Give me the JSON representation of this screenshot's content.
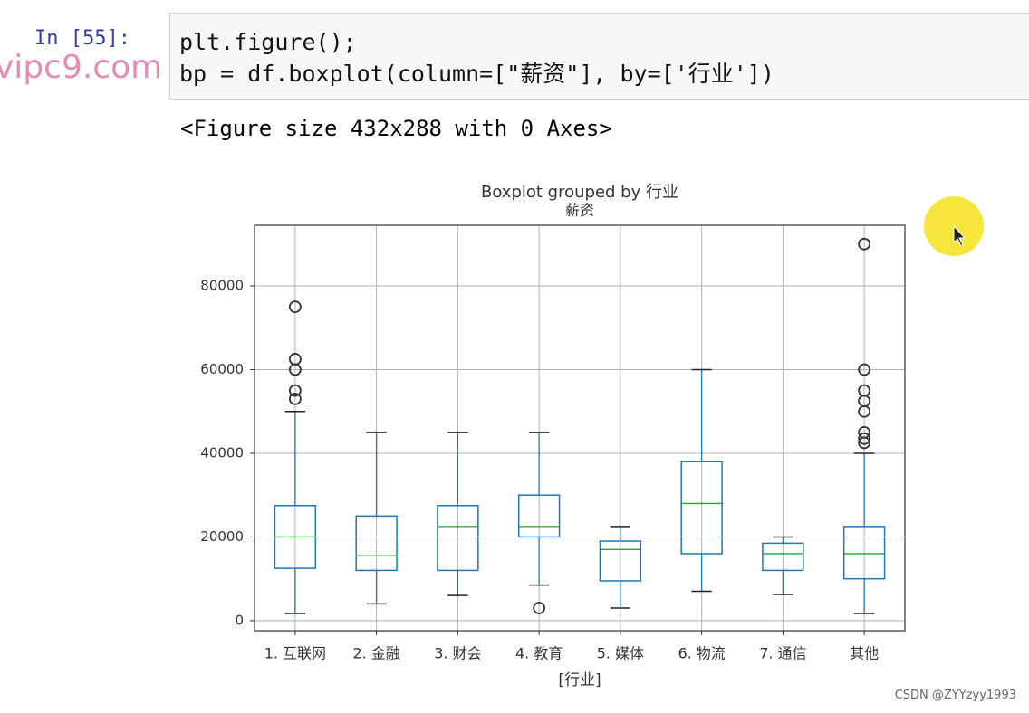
{
  "watermark": "vipc9.com",
  "cell": {
    "prompt": "In [55]:",
    "code": [
      "plt.figure();",
      "bp = df.boxplot(column=[\"薪资\"], by=['行业'])"
    ],
    "output": "<Figure size 432x288 with 0 Axes>"
  },
  "footer": "CSDN @ZYYzyy1993",
  "chart_data": {
    "type": "box",
    "title": "Boxplot grouped by 行业",
    "subtitle": "薪资",
    "xlabel": "[行业]",
    "categories": [
      "1. 互联网",
      "2. 金融",
      "3. 财会",
      "4. 教育",
      "5. 媒体",
      "6. 物流",
      "7. 通信",
      "其他"
    ],
    "boxes": [
      {
        "whislo": 1700,
        "q1": 12500,
        "med": 20000,
        "q3": 27500,
        "whishi": 50000,
        "fliers": [
          53000,
          55000,
          60000,
          62500,
          75000
        ]
      },
      {
        "whislo": 4000,
        "q1": 12000,
        "med": 15500,
        "q3": 25000,
        "whishi": 45000,
        "fliers": []
      },
      {
        "whislo": 6000,
        "q1": 12000,
        "med": 22500,
        "q3": 27500,
        "whishi": 45000,
        "fliers": []
      },
      {
        "whislo": 8500,
        "q1": 20000,
        "med": 22500,
        "q3": 30000,
        "whishi": 45000,
        "fliers": [
          3000
        ]
      },
      {
        "whislo": 3000,
        "q1": 9500,
        "med": 17000,
        "q3": 19000,
        "whishi": 22500,
        "fliers": []
      },
      {
        "whislo": 7000,
        "q1": 16000,
        "med": 28000,
        "q3": 38000,
        "whishi": 60000,
        "fliers": []
      },
      {
        "whislo": 6250,
        "q1": 12000,
        "med": 16000,
        "q3": 18500,
        "whishi": 20000,
        "fliers": []
      },
      {
        "whislo": 1700,
        "q1": 10000,
        "med": 16000,
        "q3": 22500,
        "whishi": 40000,
        "fliers": [
          42500,
          43500,
          45000,
          50000,
          52500,
          55000,
          60000,
          90000
        ]
      }
    ],
    "box_color": "#1f77b4",
    "median_color": "#2ca02c",
    "cap_color": "#222222",
    "ylim": [
      -2400,
      94500
    ],
    "yticks": [
      0,
      20000,
      40000,
      60000,
      80000
    ],
    "grid": true
  }
}
